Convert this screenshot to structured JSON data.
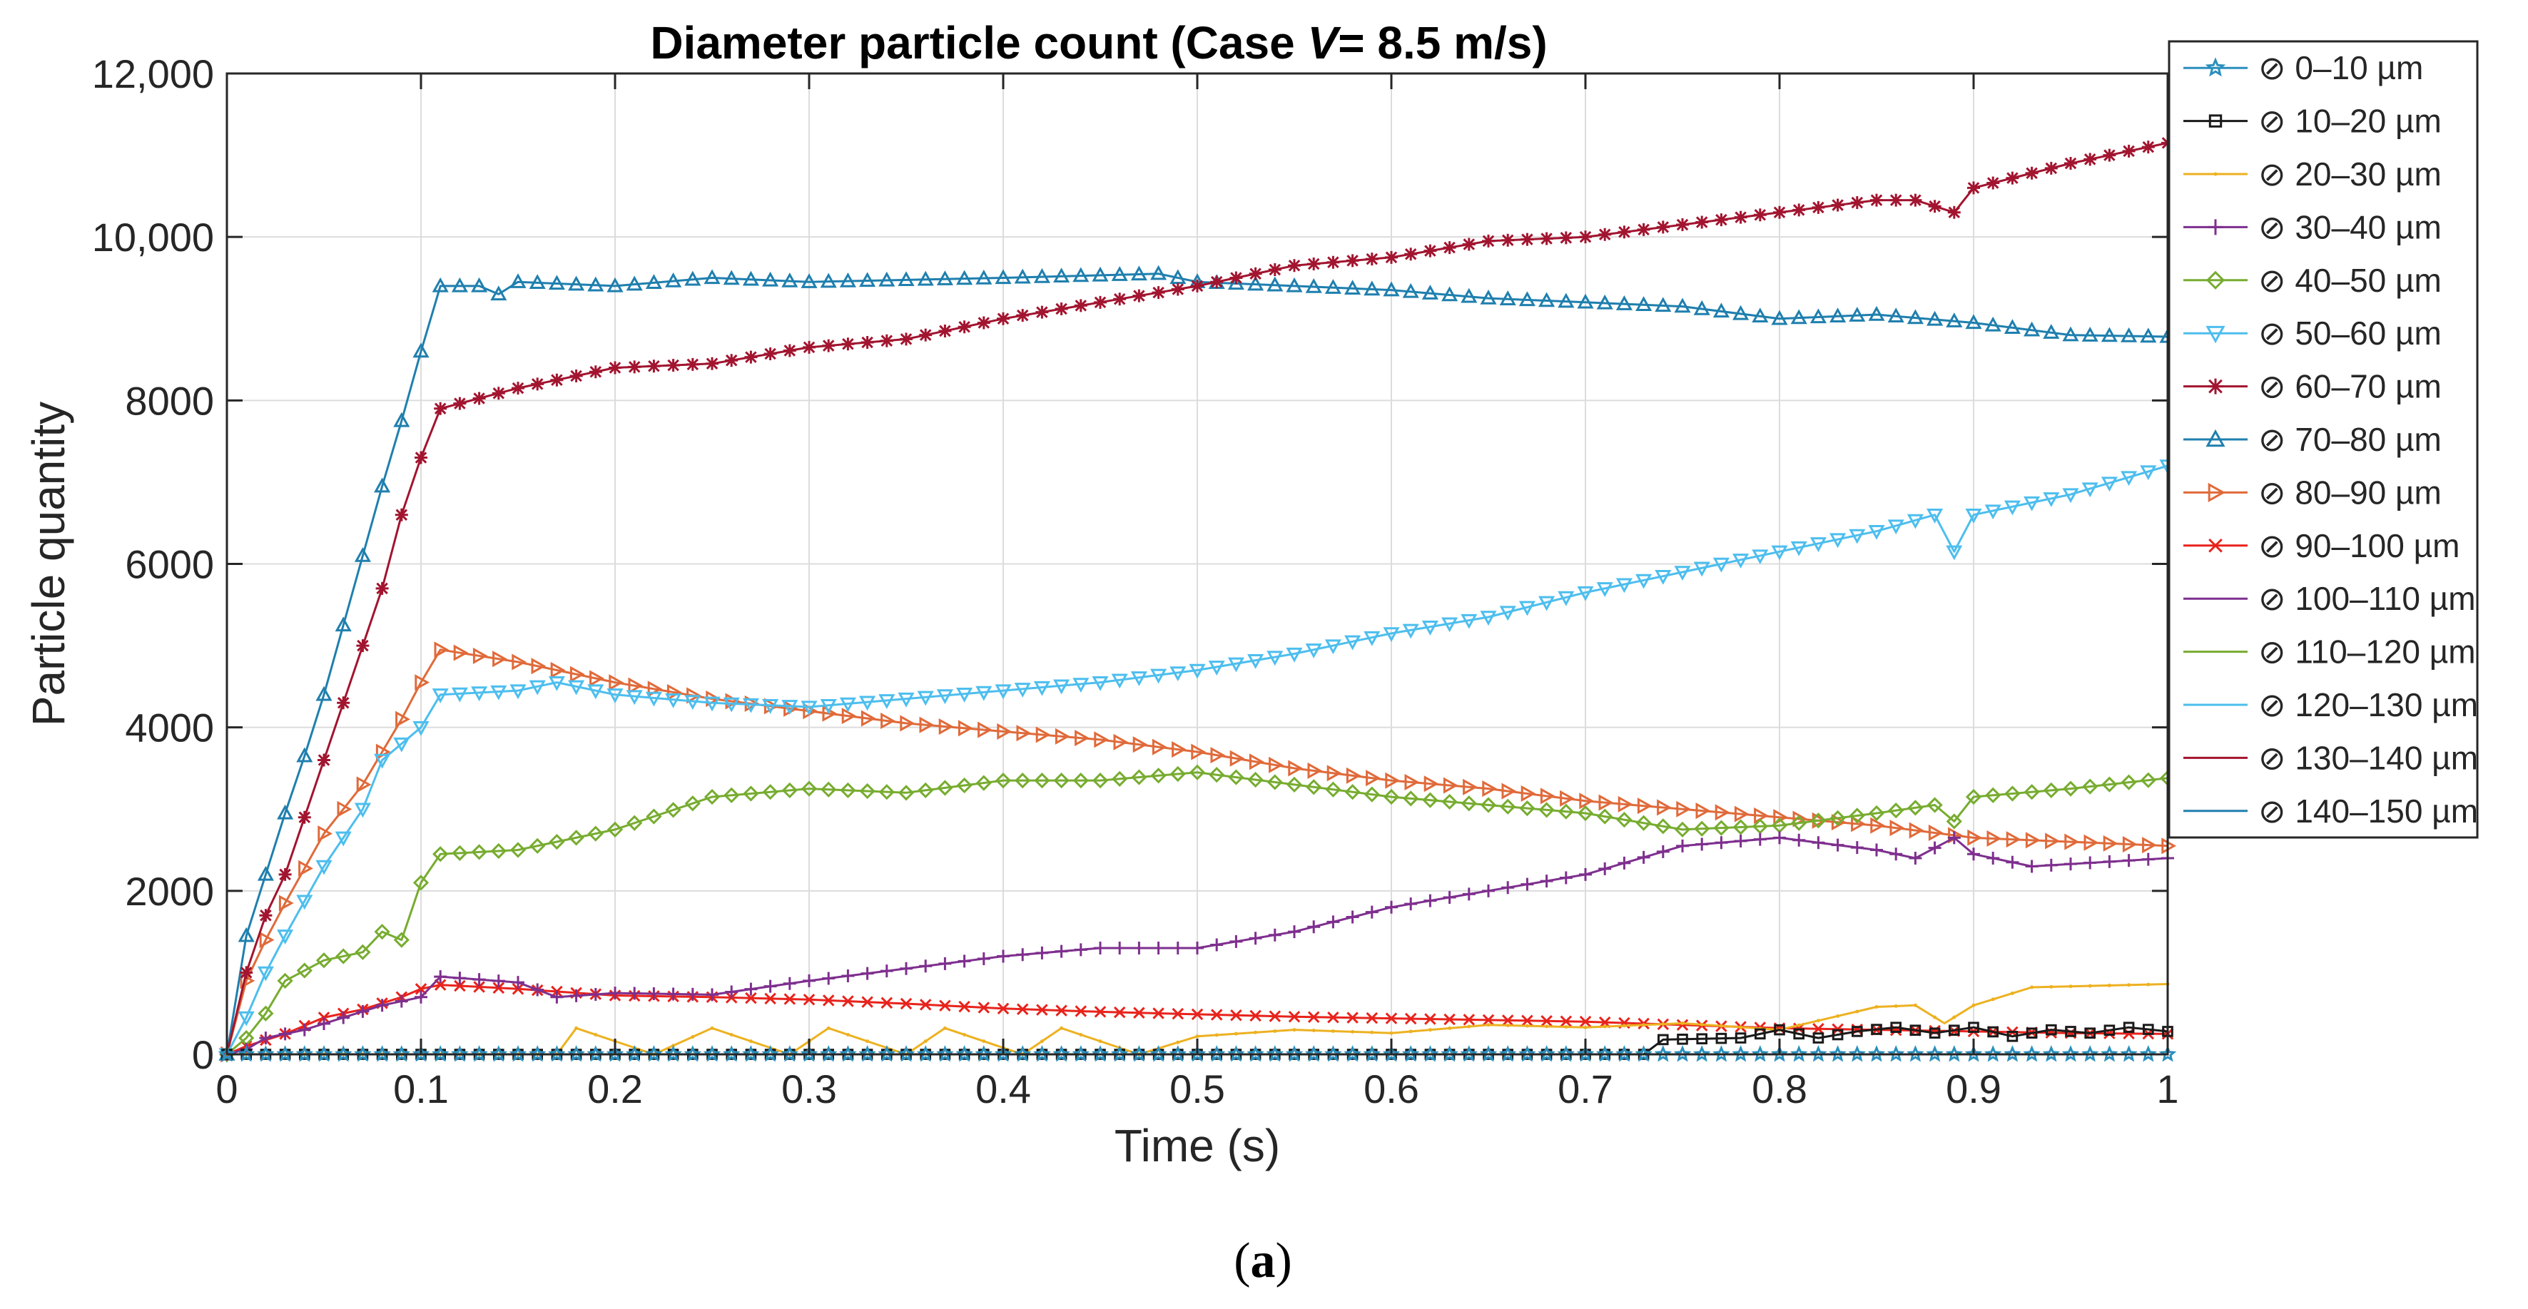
{
  "chart_data": {
    "type": "line",
    "title": "Diameter particle count (Case V = 8.5 m/s)",
    "title_parts": {
      "prefix": "Diameter particle count (Case ",
      "italic": "V",
      "suffix": "= 8.5 m/s)"
    },
    "xlabel": "Time (s)",
    "ylabel": "Particle quantity",
    "xlim": [
      0,
      1
    ],
    "ylim": [
      0,
      12000
    ],
    "xticks": [
      0,
      0.1,
      0.2,
      0.3,
      0.4,
      0.5,
      0.6,
      0.7,
      0.8,
      0.9,
      1
    ],
    "xtick_labels": [
      "0",
      "0.1",
      "0.2",
      "0.3",
      "0.4",
      "0.5",
      "0.6",
      "0.7",
      "0.8",
      "0.9",
      "1"
    ],
    "yticks": [
      0,
      2000,
      4000,
      6000,
      8000,
      10000,
      12000
    ],
    "ytick_labels": [
      "0",
      "2000",
      "4000",
      "6000",
      "8000",
      "10,000",
      "12,000"
    ],
    "grid": true,
    "legend_position": "outside-right-top",
    "legend_symbol": "⊘",
    "caption": "(a)",
    "caption_parts": {
      "open": "(",
      "bold": "a",
      "close": ")"
    },
    "series": [
      {
        "name": "0–10 µm",
        "label": "⊘ 0–10 µm",
        "color": "#2a8fbd",
        "marker": "star",
        "points": [
          [
            0,
            0
          ],
          [
            1,
            0
          ]
        ]
      },
      {
        "name": "10–20 µm",
        "label": "⊘ 10–20 µm",
        "color": "#1a1a1a",
        "marker": "square",
        "points": [
          [
            0,
            0
          ],
          [
            0.73,
            0
          ],
          [
            0.74,
            180
          ],
          [
            0.78,
            200
          ],
          [
            0.8,
            300
          ],
          [
            0.82,
            200
          ],
          [
            0.84,
            280
          ],
          [
            0.86,
            330
          ],
          [
            0.88,
            260
          ],
          [
            0.9,
            330
          ],
          [
            0.92,
            220
          ],
          [
            0.94,
            300
          ],
          [
            0.96,
            260
          ],
          [
            0.98,
            330
          ],
          [
            1,
            280
          ]
        ]
      },
      {
        "name": "20–30 µm",
        "label": "⊘ 20–30 µm",
        "color": "#edb120",
        "marker": "dot",
        "points": [
          [
            0,
            0
          ],
          [
            0.17,
            0
          ],
          [
            0.18,
            320
          ],
          [
            0.22,
            0
          ],
          [
            0.25,
            320
          ],
          [
            0.29,
            0
          ],
          [
            0.31,
            320
          ],
          [
            0.35,
            0
          ],
          [
            0.37,
            320
          ],
          [
            0.41,
            0
          ],
          [
            0.43,
            320
          ],
          [
            0.47,
            0
          ],
          [
            0.5,
            220
          ],
          [
            0.55,
            300
          ],
          [
            0.6,
            260
          ],
          [
            0.65,
            360
          ],
          [
            0.7,
            330
          ],
          [
            0.75,
            380
          ],
          [
            0.8,
            300
          ],
          [
            0.85,
            580
          ],
          [
            0.87,
            600
          ],
          [
            0.885,
            380
          ],
          [
            0.9,
            600
          ],
          [
            0.93,
            820
          ],
          [
            1,
            860
          ]
        ]
      },
      {
        "name": "30–40 µm",
        "label": "⊘ 30–40 µm",
        "color": "#7e2f8e",
        "marker": "plus",
        "points": [
          [
            0,
            0
          ],
          [
            0.01,
            60
          ],
          [
            0.02,
            200
          ],
          [
            0.04,
            300
          ],
          [
            0.06,
            450
          ],
          [
            0.08,
            600
          ],
          [
            0.1,
            700
          ],
          [
            0.11,
            950
          ],
          [
            0.15,
            880
          ],
          [
            0.17,
            700
          ],
          [
            0.2,
            750
          ],
          [
            0.25,
            730
          ],
          [
            0.3,
            900
          ],
          [
            0.35,
            1050
          ],
          [
            0.4,
            1200
          ],
          [
            0.45,
            1300
          ],
          [
            0.5,
            1300
          ],
          [
            0.55,
            1500
          ],
          [
            0.6,
            1800
          ],
          [
            0.65,
            2000
          ],
          [
            0.7,
            2200
          ],
          [
            0.75,
            2550
          ],
          [
            0.8,
            2650
          ],
          [
            0.85,
            2500
          ],
          [
            0.87,
            2400
          ],
          [
            0.89,
            2650
          ],
          [
            0.9,
            2450
          ],
          [
            0.93,
            2300
          ],
          [
            1,
            2400
          ]
        ]
      },
      {
        "name": "40–50 µm",
        "label": "⊘ 40–50 µm",
        "color": "#77ac30",
        "marker": "diamond",
        "points": [
          [
            0,
            0
          ],
          [
            0.01,
            200
          ],
          [
            0.02,
            500
          ],
          [
            0.03,
            900
          ],
          [
            0.05,
            1150
          ],
          [
            0.07,
            1250
          ],
          [
            0.08,
            1500
          ],
          [
            0.09,
            1400
          ],
          [
            0.1,
            2100
          ],
          [
            0.11,
            2450
          ],
          [
            0.15,
            2500
          ],
          [
            0.2,
            2750
          ],
          [
            0.25,
            3150
          ],
          [
            0.3,
            3250
          ],
          [
            0.35,
            3200
          ],
          [
            0.4,
            3350
          ],
          [
            0.45,
            3350
          ],
          [
            0.5,
            3450
          ],
          [
            0.55,
            3300
          ],
          [
            0.6,
            3150
          ],
          [
            0.65,
            3050
          ],
          [
            0.7,
            2950
          ],
          [
            0.75,
            2750
          ],
          [
            0.8,
            2800
          ],
          [
            0.85,
            2950
          ],
          [
            0.88,
            3050
          ],
          [
            0.89,
            2850
          ],
          [
            0.9,
            3150
          ],
          [
            0.95,
            3250
          ],
          [
            1,
            3380
          ]
        ]
      },
      {
        "name": "50–60 µm",
        "label": "⊘ 50–60 µm",
        "color": "#4dbeee",
        "marker": "tridown",
        "points": [
          [
            0,
            0
          ],
          [
            0.01,
            450
          ],
          [
            0.02,
            1000
          ],
          [
            0.03,
            1450
          ],
          [
            0.05,
            2300
          ],
          [
            0.07,
            3000
          ],
          [
            0.08,
            3600
          ],
          [
            0.1,
            4000
          ],
          [
            0.11,
            4400
          ],
          [
            0.15,
            4450
          ],
          [
            0.17,
            4550
          ],
          [
            0.2,
            4400
          ],
          [
            0.25,
            4300
          ],
          [
            0.3,
            4250
          ],
          [
            0.35,
            4350
          ],
          [
            0.4,
            4450
          ],
          [
            0.45,
            4550
          ],
          [
            0.5,
            4700
          ],
          [
            0.55,
            4900
          ],
          [
            0.6,
            5150
          ],
          [
            0.65,
            5350
          ],
          [
            0.7,
            5650
          ],
          [
            0.75,
            5900
          ],
          [
            0.8,
            6150
          ],
          [
            0.85,
            6400
          ],
          [
            0.88,
            6600
          ],
          [
            0.89,
            6150
          ],
          [
            0.9,
            6600
          ],
          [
            0.95,
            6850
          ],
          [
            1,
            7200
          ]
        ]
      },
      {
        "name": "60–70 µm",
        "label": "⊘ 60–70 µm",
        "color": "#a2142f",
        "marker": "asterisk",
        "points": [
          [
            0,
            0
          ],
          [
            0.01,
            1000
          ],
          [
            0.02,
            1700
          ],
          [
            0.03,
            2200
          ],
          [
            0.05,
            3600
          ],
          [
            0.06,
            4300
          ],
          [
            0.07,
            5000
          ],
          [
            0.08,
            5700
          ],
          [
            0.09,
            6600
          ],
          [
            0.1,
            7300
          ],
          [
            0.11,
            7900
          ],
          [
            0.15,
            8150
          ],
          [
            0.2,
            8400
          ],
          [
            0.25,
            8450
          ],
          [
            0.3,
            8650
          ],
          [
            0.35,
            8750
          ],
          [
            0.4,
            9000
          ],
          [
            0.45,
            9200
          ],
          [
            0.5,
            9400
          ],
          [
            0.55,
            9650
          ],
          [
            0.6,
            9750
          ],
          [
            0.65,
            9950
          ],
          [
            0.7,
            10000
          ],
          [
            0.75,
            10150
          ],
          [
            0.8,
            10300
          ],
          [
            0.85,
            10450
          ],
          [
            0.87,
            10450
          ],
          [
            0.89,
            10300
          ],
          [
            0.9,
            10600
          ],
          [
            0.95,
            10900
          ],
          [
            1,
            11150
          ]
        ]
      },
      {
        "name": "70–80 µm",
        "label": "⊘ 70–80 µm",
        "color": "#1f7fae",
        "marker": "triup",
        "points": [
          [
            0,
            0
          ],
          [
            0.01,
            1450
          ],
          [
            0.02,
            2200
          ],
          [
            0.03,
            2950
          ],
          [
            0.04,
            3650
          ],
          [
            0.05,
            4400
          ],
          [
            0.06,
            5250
          ],
          [
            0.07,
            6100
          ],
          [
            0.08,
            6950
          ],
          [
            0.09,
            7750
          ],
          [
            0.1,
            8600
          ],
          [
            0.11,
            9400
          ],
          [
            0.13,
            9400
          ],
          [
            0.14,
            9300
          ],
          [
            0.15,
            9450
          ],
          [
            0.2,
            9400
          ],
          [
            0.25,
            9500
          ],
          [
            0.3,
            9450
          ],
          [
            0.4,
            9500
          ],
          [
            0.48,
            9550
          ],
          [
            0.5,
            9450
          ],
          [
            0.55,
            9400
          ],
          [
            0.6,
            9350
          ],
          [
            0.65,
            9250
          ],
          [
            0.7,
            9200
          ],
          [
            0.75,
            9150
          ],
          [
            0.8,
            9000
          ],
          [
            0.85,
            9050
          ],
          [
            0.9,
            8950
          ],
          [
            0.95,
            8800
          ],
          [
            1,
            8780
          ]
        ]
      },
      {
        "name": "80–90 µm",
        "label": "⊘ 80–90 µm",
        "color": "#e06a3a",
        "marker": "triright",
        "points": [
          [
            0,
            0
          ],
          [
            0.01,
            900
          ],
          [
            0.02,
            1400
          ],
          [
            0.03,
            1850
          ],
          [
            0.05,
            2700
          ],
          [
            0.07,
            3300
          ],
          [
            0.09,
            4100
          ],
          [
            0.1,
            4550
          ],
          [
            0.11,
            4950
          ],
          [
            0.15,
            4800
          ],
          [
            0.2,
            4550
          ],
          [
            0.25,
            4350
          ],
          [
            0.3,
            4200
          ],
          [
            0.35,
            4050
          ],
          [
            0.4,
            3950
          ],
          [
            0.45,
            3850
          ],
          [
            0.5,
            3700
          ],
          [
            0.55,
            3500
          ],
          [
            0.6,
            3350
          ],
          [
            0.65,
            3250
          ],
          [
            0.7,
            3100
          ],
          [
            0.75,
            3000
          ],
          [
            0.8,
            2900
          ],
          [
            0.85,
            2800
          ],
          [
            0.9,
            2650
          ],
          [
            0.95,
            2600
          ],
          [
            1,
            2550
          ]
        ]
      },
      {
        "name": "90–100 µm",
        "label": "⊘ 90–100 µm",
        "color": "#e8231c",
        "marker": "cross",
        "points": [
          [
            0,
            0
          ],
          [
            0.01,
            100
          ],
          [
            0.03,
            250
          ],
          [
            0.05,
            450
          ],
          [
            0.07,
            550
          ],
          [
            0.09,
            700
          ],
          [
            0.1,
            800
          ],
          [
            0.11,
            850
          ],
          [
            0.15,
            800
          ],
          [
            0.2,
            720
          ],
          [
            0.25,
            700
          ],
          [
            0.3,
            670
          ],
          [
            0.35,
            620
          ],
          [
            0.4,
            560
          ],
          [
            0.45,
            520
          ],
          [
            0.5,
            490
          ],
          [
            0.55,
            460
          ],
          [
            0.6,
            440
          ],
          [
            0.65,
            420
          ],
          [
            0.7,
            400
          ],
          [
            0.75,
            360
          ],
          [
            0.8,
            320
          ],
          [
            0.85,
            300
          ],
          [
            0.9,
            280
          ],
          [
            0.95,
            260
          ],
          [
            1,
            250
          ]
        ]
      },
      {
        "name": "100–110 µm",
        "label": "⊘ 100–110 µm",
        "color": "#7e2f8e",
        "marker": "none",
        "points": [
          [
            0,
            0
          ],
          [
            1,
            0
          ]
        ]
      },
      {
        "name": "110–120 µm",
        "label": "⊘ 110–120 µm",
        "color": "#77ac30",
        "marker": "none",
        "points": [
          [
            0,
            0
          ],
          [
            1,
            0
          ]
        ]
      },
      {
        "name": "120–130 µm",
        "label": "⊘ 120–130 µm",
        "color": "#4dbeee",
        "marker": "none",
        "points": [
          [
            0,
            0
          ],
          [
            1,
            0
          ]
        ]
      },
      {
        "name": "130–140 µm",
        "label": "⊘ 130–140 µm",
        "color": "#a2142f",
        "marker": "none",
        "points": [
          [
            0,
            0
          ],
          [
            1,
            0
          ]
        ]
      },
      {
        "name": "140–150 µm",
        "label": "⊘ 140–150 µm",
        "color": "#1f7fae",
        "marker": "none",
        "points": [
          [
            0,
            0
          ],
          [
            1,
            0
          ]
        ]
      }
    ]
  }
}
